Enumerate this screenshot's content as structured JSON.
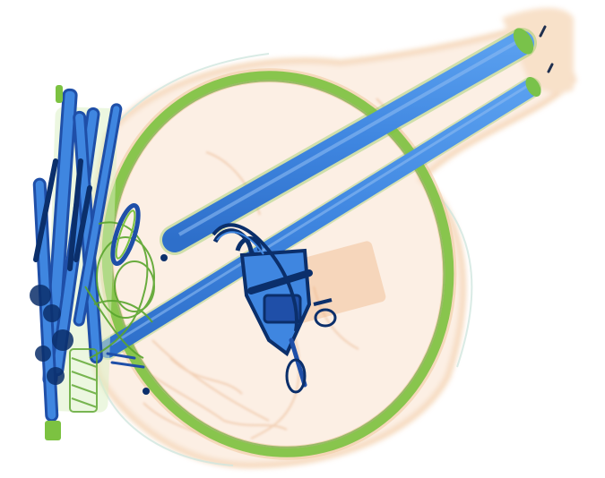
{
  "image": {
    "kind": "x-ray baggage scan",
    "background": "#ffffff",
    "palette": {
      "organic": "#f2c9a0",
      "organic_dark": "#e5a878",
      "mixed": "#7cc241",
      "mixed_dark": "#5aa52d",
      "metal": "#3f86e0",
      "metal_dark": "#1f4fa8",
      "dense": "#0b2f6b",
      "faint": "#cfe6de"
    },
    "objects": [
      {
        "name": "bag-outline",
        "material": "organic"
      },
      {
        "name": "ring-frame",
        "material": "mixed"
      },
      {
        "name": "handle-tubes",
        "material": "metal"
      },
      {
        "name": "tools-bundle",
        "material": "metal"
      },
      {
        "name": "padlock",
        "material": "metal"
      },
      {
        "name": "zipper-pull-loop",
        "material": "metal"
      },
      {
        "name": "cables",
        "material": "mixed"
      }
    ]
  }
}
